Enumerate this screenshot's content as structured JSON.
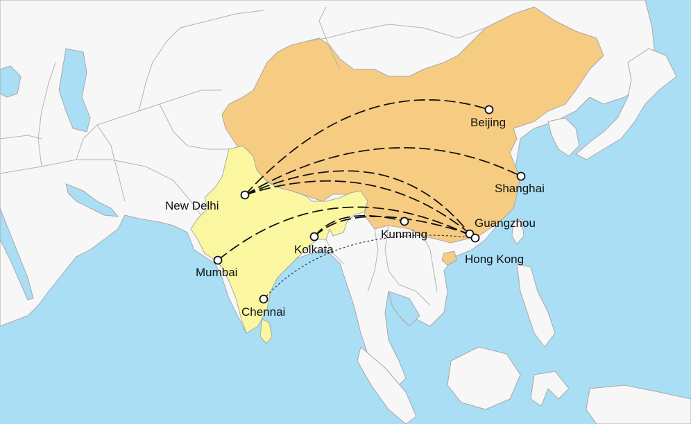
{
  "colors": {
    "ocean": "#a9def5",
    "land": "#f8f7f7",
    "india": "#fbf7a0",
    "china": "#f6cc82",
    "route": "#111111"
  },
  "cities": {
    "new_delhi": "New Delhi",
    "mumbai": "Mumbai",
    "chennai": "Chennai",
    "kolkata": "Kolkata",
    "kunming": "Kunming",
    "guangzhou": "Guangzhou",
    "hong_kong": "Hong Kong",
    "shanghai": "Shanghai",
    "beijing": "Beijing"
  },
  "routes": [
    {
      "from": "New Delhi",
      "to": "Beijing"
    },
    {
      "from": "New Delhi",
      "to": "Shanghai"
    },
    {
      "from": "New Delhi",
      "to": "Guangzhou"
    },
    {
      "from": "New Delhi",
      "to": "Hong Kong"
    },
    {
      "from": "Mumbai",
      "to": "Hong Kong"
    },
    {
      "from": "Kolkata",
      "to": "Kunming"
    },
    {
      "from": "Kolkata",
      "to": "Guangzhou"
    },
    {
      "from": "Chennai",
      "to": "Hong Kong"
    }
  ]
}
